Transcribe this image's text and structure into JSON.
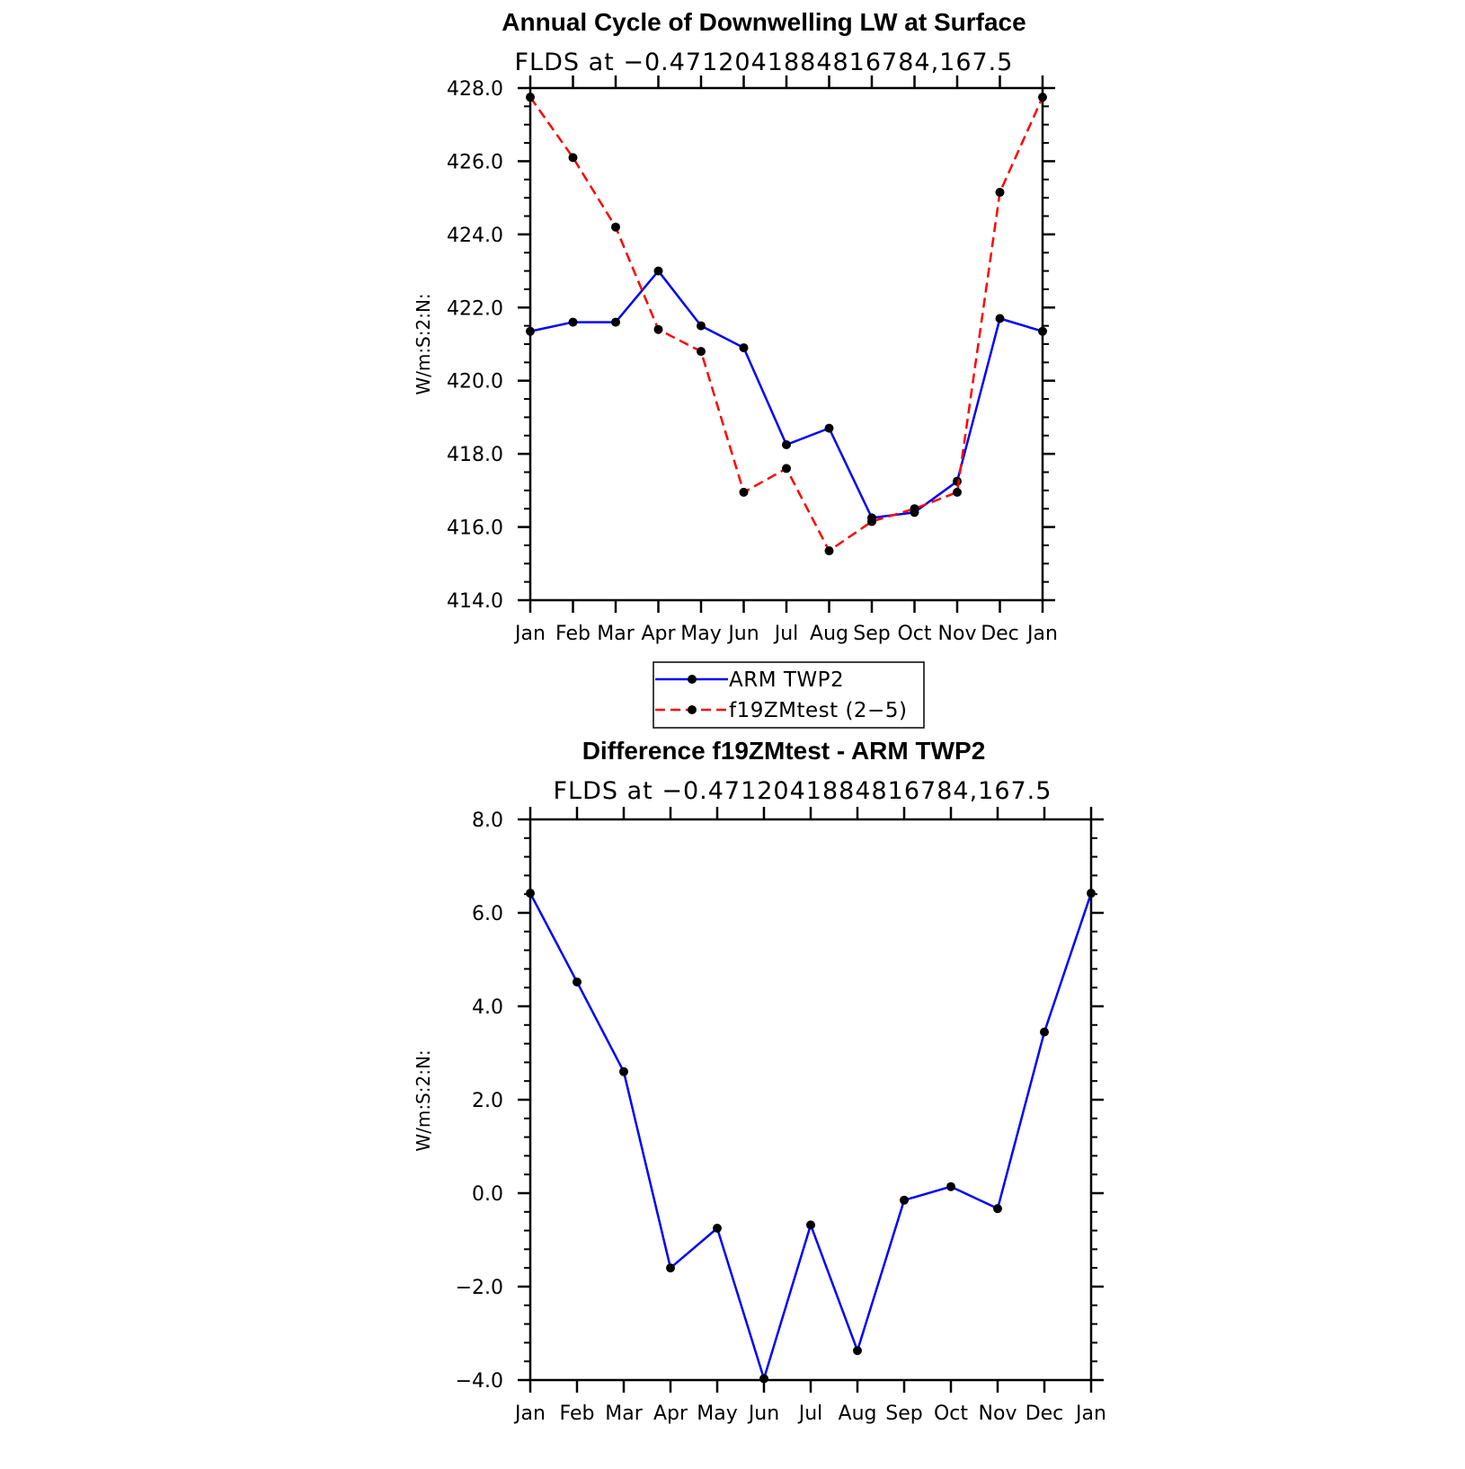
{
  "chart_data": [
    {
      "type": "line",
      "title": "Annual Cycle of Downwelling LW at Surface",
      "subtitle": "FLDS at −0.4712041884816784,167.5",
      "xlabel": "",
      "ylabel": "W/m:S:2:N:",
      "categories": [
        "Jan",
        "Feb",
        "Mar",
        "Apr",
        "May",
        "Jun",
        "Jul",
        "Aug",
        "Sep",
        "Oct",
        "Nov",
        "Dec",
        "Jan"
      ],
      "ylim": [
        414.0,
        428.0
      ],
      "y_ticks": [
        "414.0",
        "416.0",
        "418.0",
        "420.0",
        "422.0",
        "424.0",
        "426.0",
        "428.0"
      ],
      "grid": false,
      "legend_position": "bottom-center",
      "series": [
        {
          "name": "ARM TWP2",
          "color": "#0000ff",
          "dash": "solid",
          "values": [
            421.35,
            421.6,
            421.6,
            423.0,
            421.5,
            420.9,
            418.25,
            418.7,
            416.25,
            416.4,
            417.25,
            421.7,
            421.35
          ]
        },
        {
          "name": "f19ZMtest (2−5)",
          "color": "#ff0000",
          "dash": "dashed",
          "values": [
            427.75,
            426.1,
            424.2,
            421.4,
            420.8,
            416.95,
            417.6,
            415.35,
            416.15,
            416.5,
            416.95,
            425.15,
            427.75
          ]
        }
      ]
    },
    {
      "type": "line",
      "title": "Difference f19ZMtest - ARM TWP2",
      "subtitle": "FLDS at −0.4712041884816784,167.5",
      "xlabel": "",
      "ylabel": "W/m:S:2:N:",
      "categories": [
        "Jan",
        "Feb",
        "Mar",
        "Apr",
        "May",
        "Jun",
        "Jul",
        "Aug",
        "Sep",
        "Oct",
        "Nov",
        "Dec",
        "Jan"
      ],
      "ylim": [
        -4.0,
        8.0
      ],
      "y_ticks": [
        "−4.0",
        "−2.0",
        "0.0",
        "2.0",
        "4.0",
        "6.0",
        "8.0"
      ],
      "grid": false,
      "series": [
        {
          "color": "#0000ff",
          "dash": "solid",
          "values": [
            6.42,
            4.52,
            2.6,
            -1.6,
            -0.75,
            -3.97,
            -0.68,
            -3.37,
            -0.15,
            0.14,
            -0.33,
            3.45,
            6.42
          ]
        }
      ]
    }
  ]
}
